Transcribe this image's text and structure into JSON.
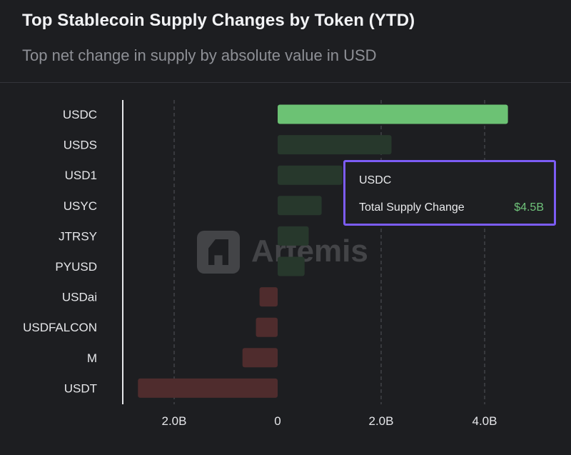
{
  "header": {
    "title": "Top Stablecoin Supply Changes by Token (YTD)",
    "subtitle": "Top net change in supply by absolute value in USD"
  },
  "tooltip": {
    "token": "USDC",
    "label": "Total Supply Change",
    "value": "$4.5B"
  },
  "watermark": {
    "text": "Artemis"
  },
  "colors": {
    "positive_highlight": "#6cc274",
    "positive": "#27382c",
    "negative": "#4f2c2d",
    "tooltip_border": "#7c5cf5",
    "background": "#1d1e21"
  },
  "chart_data": {
    "type": "bar",
    "orientation": "horizontal",
    "title": "Top Stablecoin Supply Changes by Token (YTD)",
    "subtitle": "Top net change in supply by absolute value in USD",
    "categories": [
      "USDC",
      "USDS",
      "USD1",
      "USYC",
      "JTRSY",
      "PYUSD",
      "USDai",
      "USDFALCON",
      "M",
      "USDT"
    ],
    "values": [
      4.45,
      2.2,
      1.25,
      0.85,
      0.6,
      0.52,
      -0.35,
      -0.42,
      -0.68,
      -2.7
    ],
    "unit": "B USD",
    "highlighted": "USDC",
    "xlim": [
      -3.0,
      4.5
    ],
    "xticks": [
      {
        "value": -2.0,
        "label": "2.0B"
      },
      {
        "value": 0,
        "label": "0"
      },
      {
        "value": 2.0,
        "label": "2.0B"
      },
      {
        "value": 4.0,
        "label": "4.0B"
      }
    ],
    "grid": "vertical-dashed"
  }
}
